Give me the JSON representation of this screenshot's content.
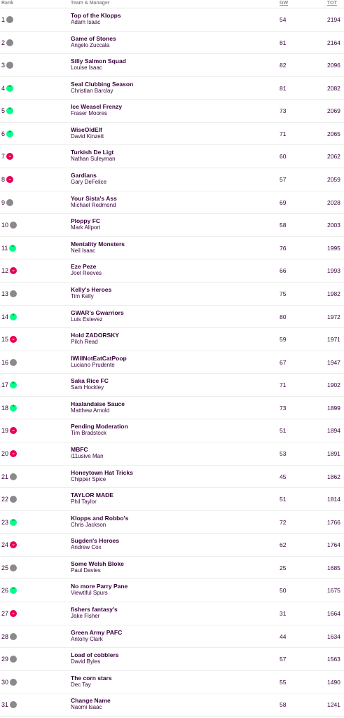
{
  "headers": {
    "rank": "Rank",
    "team": "Team & Manager",
    "gw": "GW",
    "tot": "TOT"
  },
  "colors": {
    "up": "#00ff87",
    "down": "#e90052",
    "same": "#8a8a8a",
    "text": "#37003c"
  },
  "rows": [
    {
      "rank": "1",
      "move": "same",
      "team": "Top of the Klopps",
      "manager": "Adam Isaac",
      "gw": "54",
      "tot": "2194"
    },
    {
      "rank": "2",
      "move": "same",
      "team": "Game of Stones",
      "manager": "Angelo Zuccala",
      "gw": "81",
      "tot": "2164"
    },
    {
      "rank": "3",
      "move": "same",
      "team": "Silly Salmon Squad",
      "manager": "Louise Isaac",
      "gw": "82",
      "tot": "2096"
    },
    {
      "rank": "4",
      "move": "up",
      "team": "Seal Clubbing Season",
      "manager": "Christian Barclay",
      "gw": "81",
      "tot": "2082"
    },
    {
      "rank": "5",
      "move": "up",
      "team": "Ice Weasel Frenzy",
      "manager": "Fraser Moores",
      "gw": "73",
      "tot": "2069"
    },
    {
      "rank": "6",
      "move": "up",
      "team": "WiseOldElf",
      "manager": "David Kinzett",
      "gw": "71",
      "tot": "2065"
    },
    {
      "rank": "7",
      "move": "down",
      "team": "Turkish De Ligt",
      "manager": "Nathan Suleyman",
      "gw": "60",
      "tot": "2062"
    },
    {
      "rank": "8",
      "move": "down",
      "team": "Gardians",
      "manager": "Gary DeFelice",
      "gw": "57",
      "tot": "2059"
    },
    {
      "rank": "9",
      "move": "same",
      "team": "Your Sista's Ass",
      "manager": "Michael Redmond",
      "gw": "69",
      "tot": "2028"
    },
    {
      "rank": "10",
      "move": "same",
      "team": "Ploppy FC",
      "manager": "Mark Allport",
      "gw": "58",
      "tot": "2003"
    },
    {
      "rank": "11",
      "move": "up",
      "team": "Mentality Monsters",
      "manager": "Neil Isaac",
      "gw": "76",
      "tot": "1995"
    },
    {
      "rank": "12",
      "move": "down",
      "team": "Eze Peze",
      "manager": "Joel Reeves",
      "gw": "66",
      "tot": "1993"
    },
    {
      "rank": "13",
      "move": "same",
      "team": "Kelly's Heroes",
      "manager": "Tim Kelly",
      "gw": "75",
      "tot": "1982"
    },
    {
      "rank": "14",
      "move": "up",
      "team": "GWAR's Gwarriors",
      "manager": "Luis Estevez",
      "gw": "80",
      "tot": "1972"
    },
    {
      "rank": "15",
      "move": "down",
      "team": "Hold ZADORSKY",
      "manager": "Pilch Read",
      "gw": "59",
      "tot": "1971"
    },
    {
      "rank": "16",
      "move": "same",
      "team": "IWillNotEatCatPoop",
      "manager": "Luciano Prudente",
      "gw": "67",
      "tot": "1947"
    },
    {
      "rank": "17",
      "move": "up",
      "team": "Saka Rice FC",
      "manager": "Sam Hockley",
      "gw": "71",
      "tot": "1902"
    },
    {
      "rank": "18",
      "move": "up",
      "team": "Haalandaise Sauce",
      "manager": "Matthew Arnold",
      "gw": "73",
      "tot": "1899"
    },
    {
      "rank": "19",
      "move": "down",
      "team": "Pending Moderation",
      "manager": "Tim Bradstock",
      "gw": "51",
      "tot": "1894"
    },
    {
      "rank": "20",
      "move": "down",
      "team": "MBFC",
      "manager": "i11usive Man",
      "gw": "53",
      "tot": "1891"
    },
    {
      "rank": "21",
      "move": "same",
      "team": "Honeytown Hat Tricks",
      "manager": "Chipper Spice",
      "gw": "45",
      "tot": "1862"
    },
    {
      "rank": "22",
      "move": "same",
      "team": "TAYLOR MADE",
      "manager": "Phil Taylor",
      "gw": "51",
      "tot": "1814"
    },
    {
      "rank": "23",
      "move": "up",
      "team": "Klopps and Robbo's",
      "manager": "Chris Jackson",
      "gw": "72",
      "tot": "1766"
    },
    {
      "rank": "24",
      "move": "down",
      "team": "Sugden's Heroes",
      "manager": "Andrew Cox",
      "gw": "62",
      "tot": "1764"
    },
    {
      "rank": "25",
      "move": "same",
      "team": "Some Welsh Bloke",
      "manager": "Paul Davies",
      "gw": "25",
      "tot": "1685"
    },
    {
      "rank": "26",
      "move": "up",
      "team": "No more Parry Pane",
      "manager": "Viewtiful Spurs",
      "gw": "50",
      "tot": "1675"
    },
    {
      "rank": "27",
      "move": "down",
      "team": "fishers fantasy's",
      "manager": "Jake Fisher",
      "gw": "31",
      "tot": "1664"
    },
    {
      "rank": "28",
      "move": "same",
      "team": "Green Army PAFC",
      "manager": "Antony Clark",
      "gw": "44",
      "tot": "1634"
    },
    {
      "rank": "29",
      "move": "same",
      "team": "Load of cobblers",
      "manager": "David Byles",
      "gw": "57",
      "tot": "1563"
    },
    {
      "rank": "30",
      "move": "same",
      "team": "The corn stars",
      "manager": "Dec Tay",
      "gw": "55",
      "tot": "1490"
    },
    {
      "rank": "31",
      "move": "same",
      "team": "Change Name",
      "manager": "Naomi Isaac",
      "gw": "58",
      "tot": "1241"
    }
  ]
}
